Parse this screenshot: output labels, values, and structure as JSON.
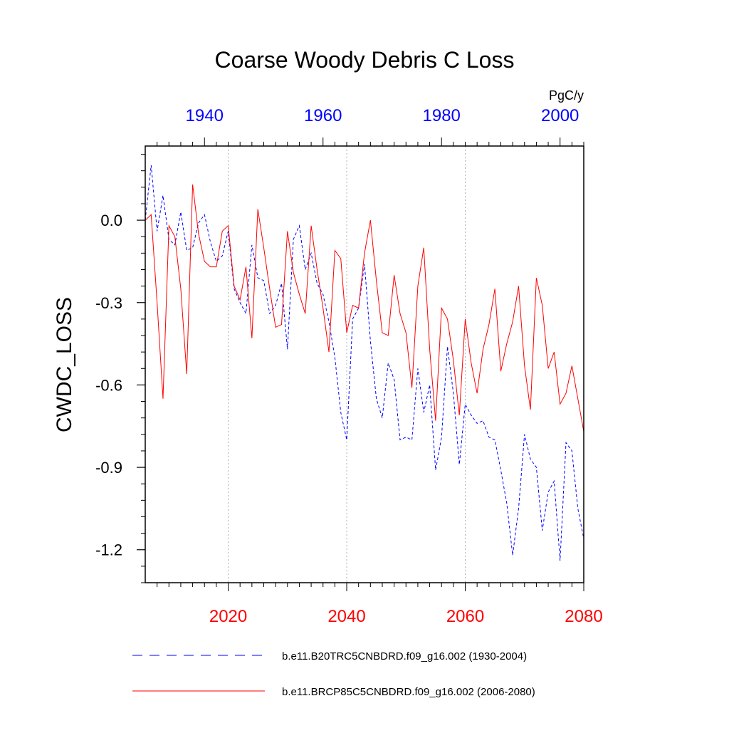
{
  "chart_data": {
    "type": "line",
    "title": "Coarse Woody Debris C Loss",
    "ylabel": "CWDC_LOSS",
    "units": "PgC/y",
    "ylim": [
      -1.32,
      0.27
    ],
    "y_ticks": [
      0.0,
      -0.3,
      -0.6,
      -0.9,
      -1.2
    ],
    "y_tick_labels": [
      "0.0",
      "-0.3",
      "-0.6",
      "-0.9",
      "-1.2"
    ],
    "bottom_axis": {
      "range": [
        2006,
        2080
      ],
      "ticks": [
        2020,
        2040,
        2060,
        2080
      ],
      "tick_labels": [
        "2020",
        "2040",
        "2060",
        "2080"
      ],
      "color": "#ff0000"
    },
    "top_axis": {
      "range": [
        1930,
        2004
      ],
      "ticks": [
        1940,
        1960,
        1980,
        2000
      ],
      "tick_labels": [
        "1940",
        "1960",
        "1980",
        "2000"
      ],
      "color": "#0000ff"
    },
    "series": [
      {
        "name": "b.e11.B20TRC5CNBDRD.f09_g16.002 (1930-2004)",
        "axis": "top",
        "style": "dashed",
        "color": "#0000ff",
        "x_start": 1930,
        "values": [
          0.0,
          0.2,
          -0.04,
          0.09,
          -0.07,
          -0.09,
          0.03,
          -0.11,
          -0.1,
          -0.01,
          0.02,
          -0.08,
          -0.15,
          -0.13,
          -0.04,
          -0.25,
          -0.3,
          -0.34,
          -0.09,
          -0.21,
          -0.22,
          -0.34,
          -0.31,
          -0.23,
          -0.47,
          -0.07,
          -0.02,
          -0.18,
          -0.12,
          -0.23,
          -0.27,
          -0.37,
          -0.5,
          -0.7,
          -0.8,
          -0.36,
          -0.32,
          -0.16,
          -0.44,
          -0.65,
          -0.72,
          -0.52,
          -0.58,
          -0.8,
          -0.79,
          -0.8,
          -0.54,
          -0.7,
          -0.6,
          -0.91,
          -0.79,
          -0.46,
          -0.63,
          -0.89,
          -0.67,
          -0.71,
          -0.74,
          -0.73,
          -0.79,
          -0.8,
          -0.91,
          -1.03,
          -1.22,
          -1.05,
          -0.78,
          -0.87,
          -0.9,
          -1.13,
          -0.99,
          -0.95,
          -1.24,
          -0.81,
          -0.84,
          -1.05,
          -1.16
        ]
      },
      {
        "name": "b.e11.BRCP85C5CNBDRD.f09_g16.002 (2006-2080)",
        "axis": "bottom",
        "style": "solid",
        "color": "#ff0000",
        "x_start": 2006,
        "values": [
          0.0,
          0.02,
          -0.3,
          -0.65,
          -0.02,
          -0.06,
          -0.25,
          -0.56,
          0.13,
          -0.05,
          -0.15,
          -0.17,
          -0.17,
          -0.04,
          -0.02,
          -0.24,
          -0.29,
          -0.17,
          -0.43,
          0.04,
          -0.1,
          -0.25,
          -0.39,
          -0.38,
          -0.04,
          -0.19,
          -0.27,
          -0.34,
          -0.02,
          -0.18,
          -0.32,
          -0.48,
          -0.11,
          -0.14,
          -0.41,
          -0.31,
          -0.32,
          -0.12,
          0.0,
          -0.22,
          -0.41,
          -0.42,
          -0.2,
          -0.34,
          -0.41,
          -0.61,
          -0.24,
          -0.1,
          -0.47,
          -0.73,
          -0.32,
          -0.36,
          -0.51,
          -0.71,
          -0.36,
          -0.52,
          -0.63,
          -0.47,
          -0.38,
          -0.25,
          -0.55,
          -0.45,
          -0.37,
          -0.24,
          -0.53,
          -0.69,
          -0.21,
          -0.31,
          -0.54,
          -0.48,
          -0.67,
          -0.63,
          -0.53,
          -0.65,
          -0.77
        ]
      }
    ]
  }
}
